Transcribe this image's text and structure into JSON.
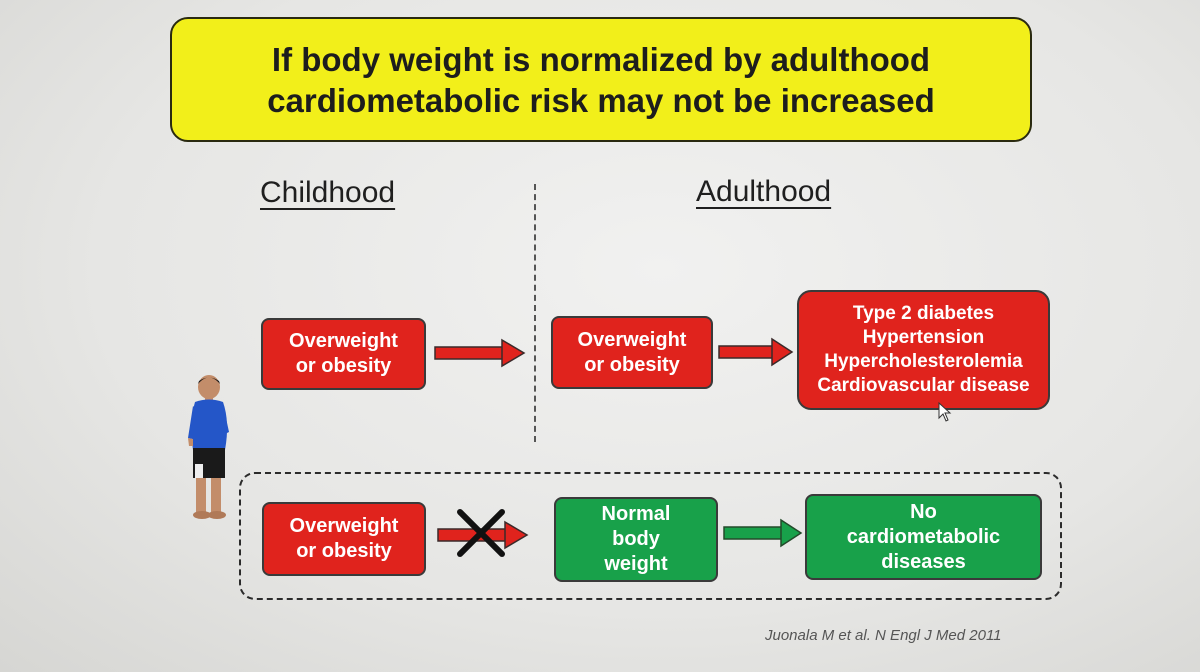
{
  "title": "If body weight is normalized by adulthood\ncardiometabolic risk may not be increased",
  "headings": {
    "childhood": "Childhood",
    "adulthood": "Adulthood"
  },
  "row1": {
    "child_box": "Overweight\nor obesity",
    "adult_box": "Overweight\nor obesity",
    "outcome_box": "Type 2 diabetes\nHypertension\nHypercholesterolemia\nCardiovascular disease"
  },
  "row2": {
    "child_box": "Overweight\nor obesity",
    "adult_box": "Normal\nbody\nweight",
    "outcome_box": "No\ncardiometabolic\ndiseases"
  },
  "citation": "Juonala M et al. N Engl J Med 2011",
  "colors": {
    "title_bg": "#f2ef1a",
    "red": "#e0231d",
    "green": "#18a14a"
  },
  "icons": [
    "child-figure-icon",
    "arrow-right-icon",
    "cross-mark-icon",
    "mouse-cursor-icon"
  ]
}
